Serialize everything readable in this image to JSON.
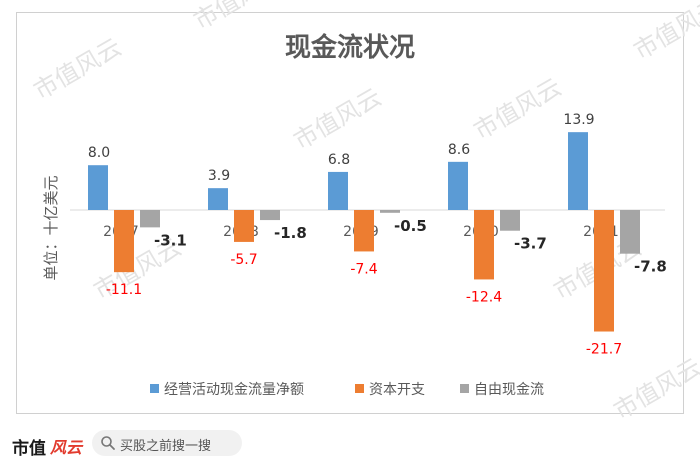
{
  "watermark_text": "市值风云",
  "footer": {
    "brand": "市值",
    "brand_logo": "风云",
    "search_placeholder": "买股之前搜一搜"
  },
  "colors": {
    "operating": "#5b9bd5",
    "capex": "#ed7d31",
    "fcf": "#a5a5a5",
    "negative_label": "#ff0000",
    "positive_label": "#404040",
    "fcf_label": "#262626"
  },
  "chart_data": {
    "type": "bar",
    "title": "现金流状况",
    "ylabel": "单位：十亿美元",
    "categories": [
      "2017",
      "2018",
      "2019",
      "2020",
      "2021"
    ],
    "series": [
      {
        "name": "经营活动现金流量净额",
        "values": [
          8.0,
          3.9,
          6.8,
          8.6,
          13.9
        ]
      },
      {
        "name": "资本开支",
        "values": [
          -11.1,
          -5.7,
          -7.4,
          -12.4,
          -21.7
        ]
      },
      {
        "name": "自由现金流",
        "values": [
          -3.1,
          -1.8,
          -0.5,
          -3.7,
          -7.8
        ]
      }
    ],
    "data_labels": [
      [
        "8.0",
        "3.9",
        "6.8",
        "8.6",
        "13.9"
      ],
      [
        "-11.1",
        "-5.7",
        "-7.4",
        "-12.4",
        "-21.7"
      ],
      [
        "-3.1",
        "-1.8",
        "-0.5",
        "-3.7",
        "-7.8"
      ]
    ],
    "legend_position": "bottom",
    "grid": false
  }
}
